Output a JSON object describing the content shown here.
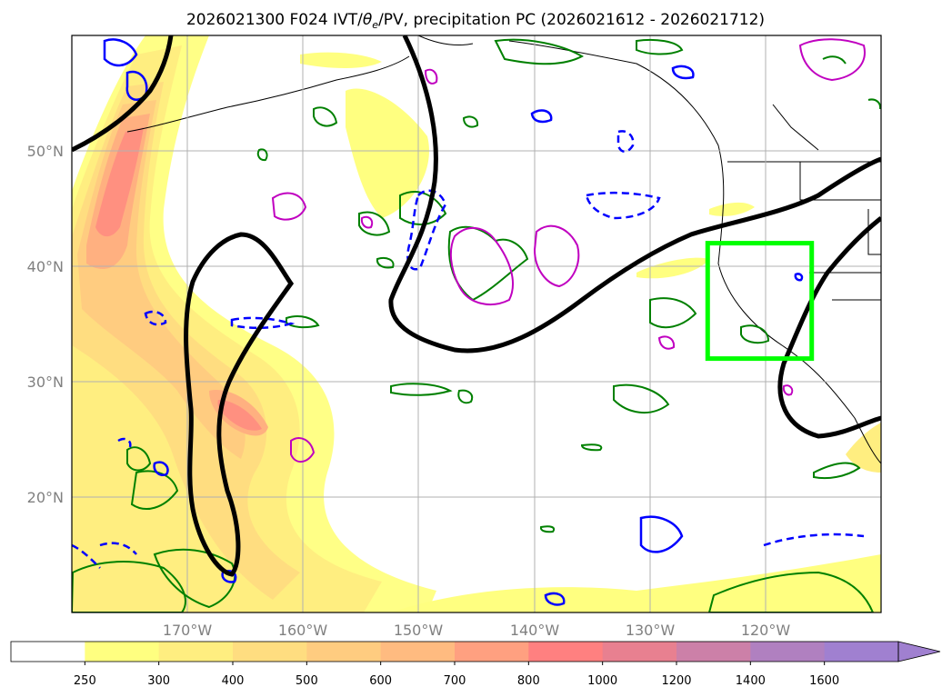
{
  "title_parts": {
    "prefix": "2026021300 F024 IVT/",
    "theta": "θ",
    "theta_sub": "e",
    "suffix": "/PV, precipitation PC (2026021612 - 2026021712)"
  },
  "map": {
    "lon_range": [
      -180,
      -110
    ],
    "lat_range": [
      10,
      60
    ],
    "lat_ticks": [
      {
        "value": 50,
        "label": "50°N"
      },
      {
        "value": 40,
        "label": "40°N"
      },
      {
        "value": 30,
        "label": "30°N"
      },
      {
        "value": 20,
        "label": "20°N"
      }
    ],
    "lon_ticks": [
      {
        "value": -170,
        "label": "170°W"
      },
      {
        "value": -160,
        "label": "160°W"
      },
      {
        "value": -150,
        "label": "150°W"
      },
      {
        "value": -140,
        "label": "140°W"
      },
      {
        "value": -130,
        "label": "130°W"
      },
      {
        "value": -120,
        "label": "120°W"
      }
    ],
    "highlight_box": {
      "lon_min": -125,
      "lon_max": -116,
      "lat_min": 32,
      "lat_max": 42,
      "color": "#00ff00"
    }
  },
  "colorbar": {
    "boundaries": [
      250,
      300,
      400,
      500,
      600,
      700,
      800,
      1000,
      1200,
      1400,
      1600
    ],
    "labels": [
      "250",
      "300",
      "400",
      "500",
      "600",
      "700",
      "800",
      "1000",
      "1200",
      "1400",
      "1600"
    ],
    "colors": [
      "#ffffff",
      "#ffff80",
      "#ffee80",
      "#ffdd80",
      "#ffcc80",
      "#ffbb80",
      "#ffa080",
      "#ff8080",
      "#e88090",
      "#cc80a8",
      "#b080c0",
      "#a080d0"
    ],
    "extend": "max"
  },
  "legend_colors": {
    "theta_e": "#000000",
    "pv_positive": "#0000ff",
    "precip_pc": "#008000",
    "ivt_anomaly": "#c000c0"
  }
}
